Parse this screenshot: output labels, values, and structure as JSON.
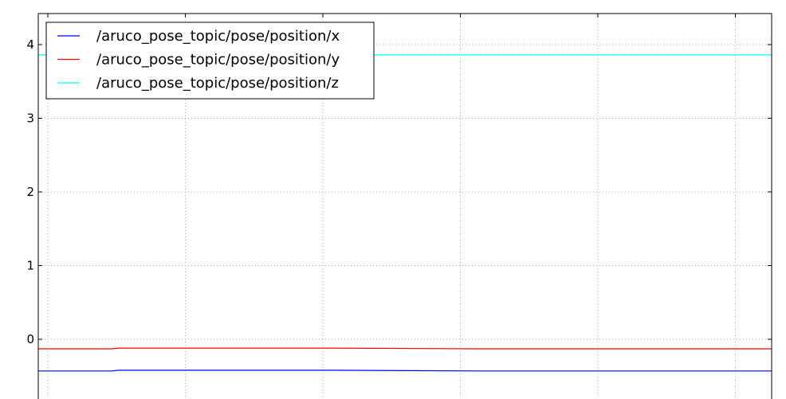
{
  "chart_data": {
    "type": "line",
    "title": "",
    "xlabel": "",
    "ylabel": "",
    "ylim": [
      -0.8,
      4.4
    ],
    "yticks": [
      0,
      1,
      2,
      3,
      4
    ],
    "ytick_labels": [
      "0",
      "1",
      "2",
      "3",
      "4"
    ],
    "x_tick_count": 6,
    "x": [
      0,
      0.5,
      0.55,
      1,
      2,
      3,
      4,
      5
    ],
    "grid": true,
    "legend_position": "top-left",
    "series": [
      {
        "name": "/aruco_pose_topic/pose/position/x",
        "color": "#0000ff",
        "values": [
          -0.43,
          -0.43,
          -0.42,
          -0.42,
          -0.42,
          -0.43,
          -0.43,
          -0.43
        ]
      },
      {
        "name": "/aruco_pose_topic/pose/position/y",
        "color": "#ff0000",
        "values": [
          -0.13,
          -0.13,
          -0.12,
          -0.12,
          -0.12,
          -0.13,
          -0.13,
          -0.13
        ]
      },
      {
        "name": "/aruco_pose_topic/pose/position/z",
        "color": "#00ffff",
        "values": [
          3.86,
          3.86,
          3.86,
          3.86,
          3.86,
          3.86,
          3.86,
          3.86
        ]
      }
    ]
  }
}
